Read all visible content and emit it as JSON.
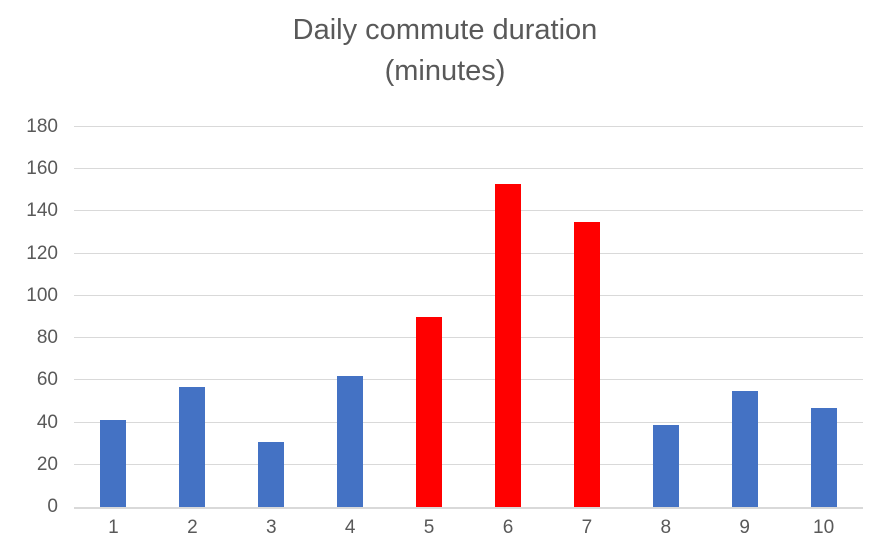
{
  "header": {
    "title_line1": "Daily commute duration",
    "title_line2": "(minutes)"
  },
  "chart_data": {
    "type": "bar",
    "title": "Daily commute duration (minutes)",
    "categories": [
      "1",
      "2",
      "3",
      "4",
      "5",
      "6",
      "7",
      "8",
      "9",
      "10"
    ],
    "values": [
      41,
      57,
      31,
      62,
      90,
      153,
      135,
      39,
      55,
      47
    ],
    "bar_colors": [
      "#4472C4",
      "#4472C4",
      "#4472C4",
      "#4472C4",
      "#FF0000",
      "#FF0000",
      "#FF0000",
      "#4472C4",
      "#4472C4",
      "#4472C4"
    ],
    "xlabel": "",
    "ylabel": "",
    "ylim": [
      0,
      180
    ],
    "ytick_step": 20,
    "yticks": [
      0,
      20,
      40,
      60,
      80,
      100,
      120,
      140,
      160,
      180
    ],
    "grid": true,
    "legend": false
  },
  "colors": {
    "default_bar": "#4472C4",
    "highlight_bar": "#FF0000",
    "gridline": "#D9D9D9",
    "axis_line": "#D9D9D9",
    "text": "#595959",
    "background": "#FFFFFF"
  }
}
